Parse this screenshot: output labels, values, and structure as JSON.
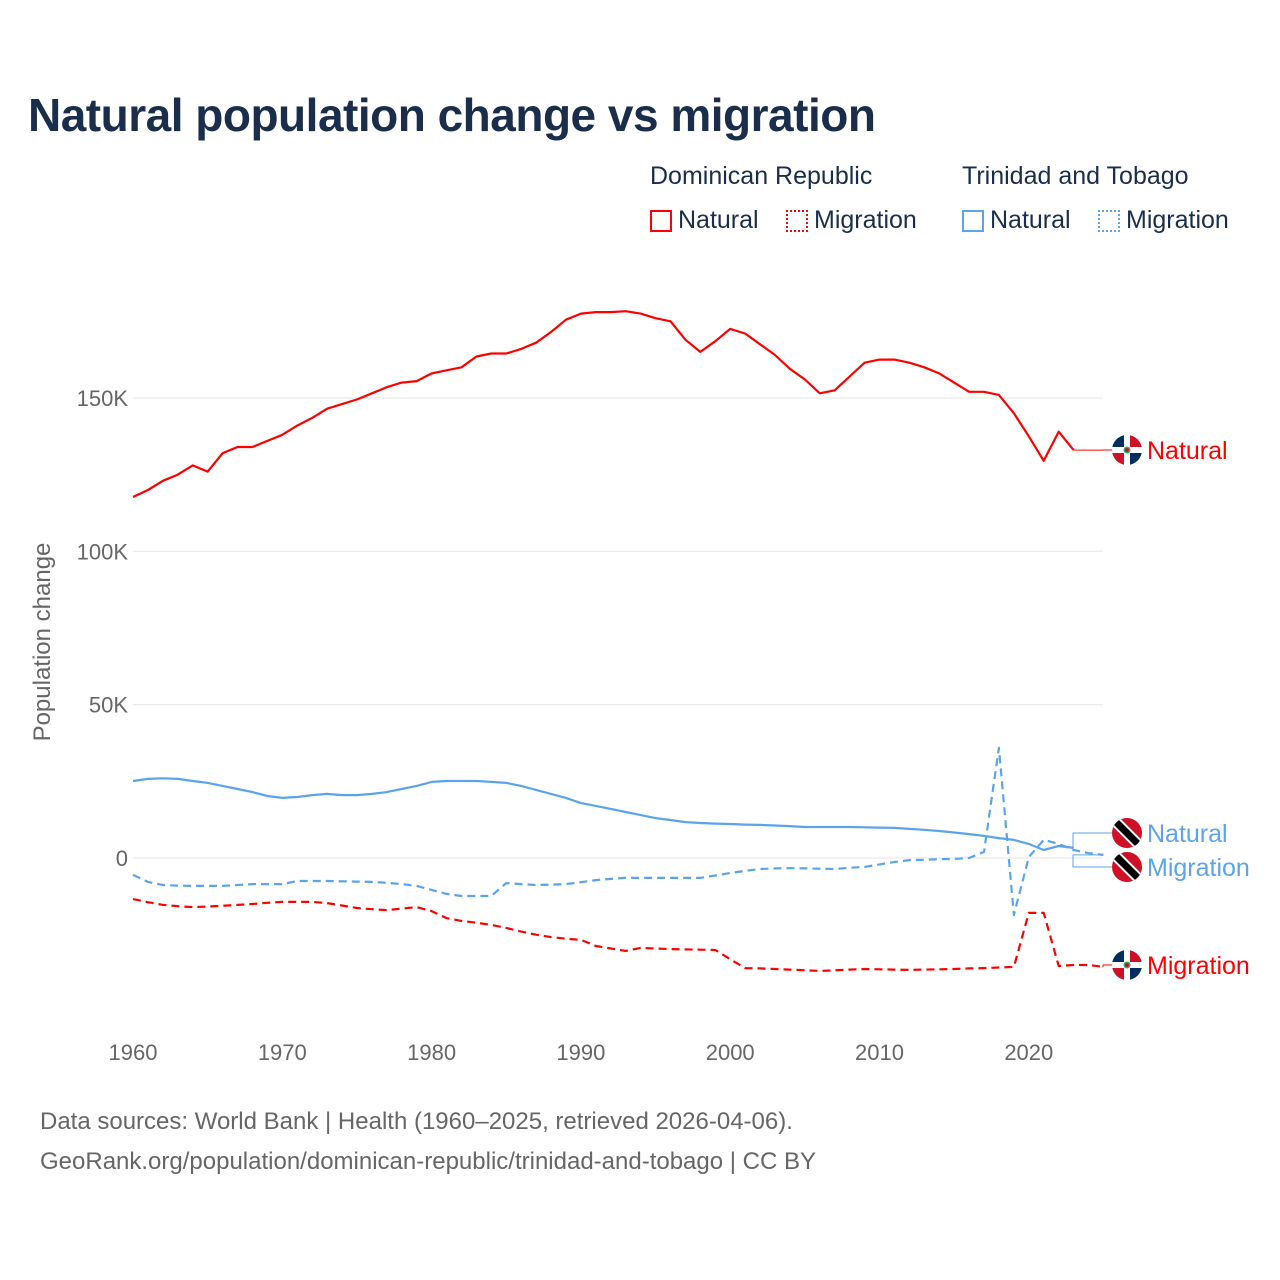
{
  "chart_data": {
    "type": "line",
    "title": "Natural population change vs migration",
    "ylabel": "Population change",
    "xlabel": "",
    "ylim": [
      -50000,
      190000
    ],
    "xlim": [
      1960,
      2025
    ],
    "grid": true,
    "yticks": [
      {
        "value": 0,
        "label": "0"
      },
      {
        "value": 50000,
        "label": "50K"
      },
      {
        "value": 100000,
        "label": "100K"
      },
      {
        "value": 150000,
        "label": "150K"
      }
    ],
    "xticks": [
      {
        "value": 1960,
        "label": "1960"
      },
      {
        "value": 1970,
        "label": "1970"
      },
      {
        "value": 1980,
        "label": "1980"
      },
      {
        "value": 1990,
        "label": "1990"
      },
      {
        "value": 2000,
        "label": "2000"
      },
      {
        "value": 2010,
        "label": "2010"
      },
      {
        "value": 2020,
        "label": "2020"
      }
    ],
    "legend": {
      "placement": "top-right",
      "groups": [
        {
          "name": "Dominican Republic",
          "items": [
            "Natural",
            "Migration"
          ]
        },
        {
          "name": "Trinidad and Tobago",
          "items": [
            "Natural",
            "Migration"
          ]
        }
      ]
    },
    "start_year": 1960,
    "series": [
      {
        "name": "Natural",
        "country": "Dominican Republic",
        "color": "#ff0000",
        "dash": false,
        "end_label": "Natural",
        "flag": "dominican-republic",
        "values_k": [
          117.7,
          120,
          123,
          125,
          128,
          126,
          132,
          134,
          134,
          136,
          138,
          141,
          143.5,
          146.5,
          148,
          149.5,
          151.5,
          153.5,
          155,
          155.5,
          158,
          159,
          160,
          163.5,
          164.5,
          164.5,
          166,
          168,
          171.5,
          175.5,
          177.5,
          178,
          178,
          178.3,
          177.5,
          176,
          175,
          169,
          165,
          168.5,
          172.5,
          171,
          167.5,
          164,
          159.5,
          156,
          151.5,
          152.5,
          157,
          161.5,
          162.5,
          162.5,
          161.5,
          160,
          158,
          155,
          152,
          152,
          151,
          145,
          137.5,
          129.5,
          139,
          133
        ]
      },
      {
        "name": "Migration",
        "country": "Dominican Republic",
        "color": "#ff0000",
        "dash": true,
        "end_label": "Migration",
        "flag": "dominican-republic",
        "values_k": [
          -13.4,
          -14.4,
          -15.3,
          -15.7,
          -16,
          -15.8,
          -15.6,
          -15.3,
          -15,
          -14.6,
          -14.3,
          -14.3,
          -14.3,
          -14.7,
          -15.5,
          -16.3,
          -16.7,
          -17,
          -16.5,
          -16,
          -17.3,
          -19.6,
          -20.5,
          -21.1,
          -21.8,
          -22.8,
          -24,
          -25,
          -25.8,
          -26.3,
          -26.7,
          -28.7,
          -29.5,
          -30.3,
          -29.3,
          -29.5,
          -29.7,
          -29.8,
          -29.9,
          -30,
          -33,
          -35.9,
          -36,
          -36.2,
          -36.4,
          -36.6,
          -36.8,
          -36.6,
          -36.4,
          -36.2,
          -36.3,
          -36.4,
          -36.5,
          -36.4,
          -36.3,
          -36.2,
          -36,
          -35.9,
          -35.7,
          -35.5,
          -17.9,
          -17.9,
          -35.2,
          -34.9,
          -34.9,
          -35.5
        ]
      },
      {
        "name": "Natural",
        "country": "Trinidad and Tobago",
        "color": "#5ba4ec",
        "dash": false,
        "end_label": "Natural",
        "flag": "trinidad-and-tobago",
        "values_k": [
          25.1,
          25.8,
          26,
          25.8,
          25.1,
          24.5,
          23.5,
          22.5,
          21.5,
          20.2,
          19.6,
          19.9,
          20.5,
          20.9,
          20.5,
          20.5,
          20.9,
          21.5,
          22.5,
          23.5,
          24.8,
          25.1,
          25.1,
          25.1,
          24.8,
          24.5,
          23.5,
          22.2,
          20.9,
          19.6,
          17.9,
          17,
          16,
          15,
          14,
          13,
          12.4,
          11.7,
          11.4,
          11.2,
          11.1,
          10.9,
          10.8,
          10.6,
          10.4,
          10.1,
          10.1,
          10.1,
          10.1,
          10,
          9.9,
          9.8,
          9.5,
          9.2,
          8.8,
          8.3,
          7.8,
          7.2,
          6.5,
          5.9,
          4.6,
          2.6,
          3.9,
          3.3
        ]
      },
      {
        "name": "Migration",
        "country": "Trinidad and Tobago",
        "color": "#5ba4ec",
        "dash": true,
        "end_label": "Migration",
        "flag": "trinidad-and-tobago",
        "values_k": [
          -5.5,
          -7.8,
          -8.8,
          -9,
          -9.1,
          -9.1,
          -9.1,
          -8.8,
          -8.5,
          -8.5,
          -8.5,
          -7.5,
          -7.5,
          -7.5,
          -7.6,
          -7.7,
          -7.8,
          -8.1,
          -8.5,
          -9.1,
          -10.4,
          -11.7,
          -12.4,
          -12.4,
          -12.4,
          -8.2,
          -8.5,
          -8.8,
          -8.7,
          -8.5,
          -7.9,
          -7.2,
          -6.8,
          -6.5,
          -6.5,
          -6.5,
          -6.5,
          -6.5,
          -6.5,
          -5.7,
          -4.9,
          -4.2,
          -3.6,
          -3.4,
          -3.3,
          -3.4,
          -3.5,
          -3.6,
          -3.2,
          -2.9,
          -2.1,
          -1.3,
          -0.7,
          -0.6,
          -0.4,
          -0.3,
          0,
          2,
          35.9,
          -18.6,
          0.3,
          5.9,
          4.6,
          2.6,
          1.6,
          1
        ]
      }
    ]
  },
  "footer": {
    "sources": "Data sources: World Bank | Health (1960–2025, retrieved 2026-04-06).",
    "link": "GeoRank.org/population/dominican-republic/trinidad-and-tobago | CC BY"
  }
}
